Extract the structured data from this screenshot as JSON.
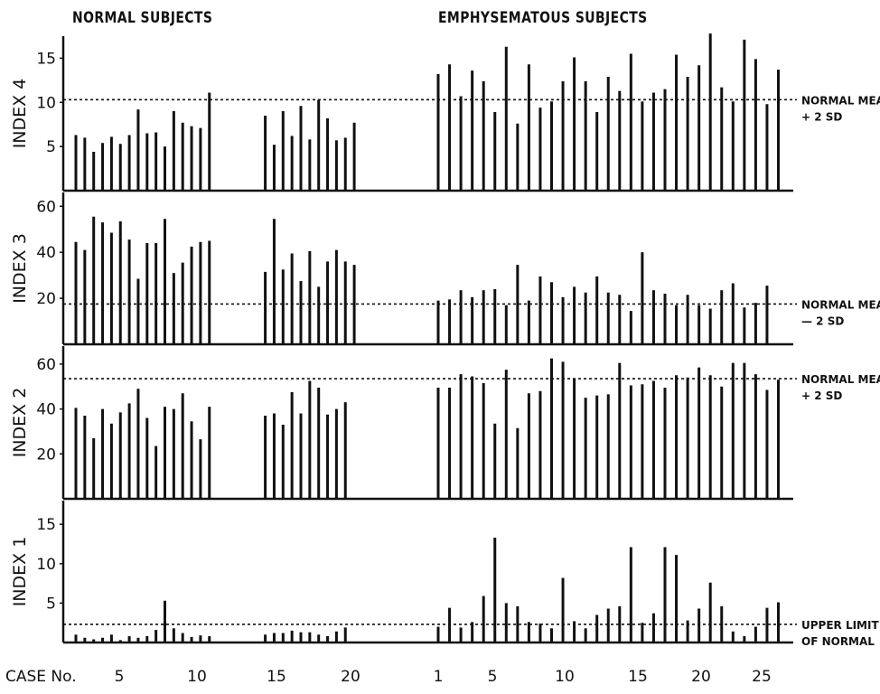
{
  "figure": {
    "headers": {
      "normal": "NORMAL SUBJECTS",
      "emphysema": "EMPHYSEMATOUS SUBJECTS"
    },
    "case_axis_label": "CASE No."
  },
  "chart_data": [
    {
      "type": "bar",
      "ylabel": "INDEX 4",
      "ylim": [
        0,
        17.5
      ],
      "yticks": [
        "5",
        "10",
        "15"
      ],
      "yticks_values": [
        5,
        10,
        15
      ],
      "reference_line": {
        "value": 10.3,
        "label_lines": [
          "NORMAL MEAN",
          "+ 2 SD"
        ]
      },
      "series": [
        {
          "name": "NORMAL SUBJECTS",
          "case_tick_labels": [
            "5",
            "10",
            "15",
            "20"
          ],
          "values": [
            6.3,
            6.0,
            4.4,
            5.4,
            6.1,
            5.3,
            6.3,
            9.2,
            6.5,
            6.6,
            5.0,
            9.0,
            7.7,
            7.3,
            7.1,
            11.1,
            8.5,
            5.2,
            9.0,
            6.2,
            9.6,
            5.8,
            10.3,
            8.2,
            5.7,
            6.0,
            7.7
          ]
        },
        {
          "name": "EMPHYSEMATOUS SUBJECTS",
          "case_tick_labels": [
            "1",
            "5",
            "10",
            "15",
            "20",
            "25"
          ],
          "values": [
            13.2,
            14.3,
            10.7,
            13.6,
            12.4,
            8.9,
            16.3,
            7.6,
            14.3,
            9.4,
            10.1,
            12.4,
            15.1,
            12.4,
            8.9,
            12.9,
            11.3,
            15.5,
            10.1,
            11.1,
            11.5,
            15.4,
            12.9,
            14.2,
            17.8,
            11.7,
            10.1,
            17.1,
            14.9,
            9.8,
            13.7
          ]
        }
      ]
    },
    {
      "type": "bar",
      "ylabel": "INDEX 3",
      "ylim": [
        0,
        66
      ],
      "yticks": [
        "20",
        "40",
        "60"
      ],
      "yticks_values": [
        20,
        40,
        60
      ],
      "reference_line": {
        "value": 17.5,
        "label_lines": [
          "NORMAL MEAN",
          "— 2 SD"
        ]
      },
      "series": [
        {
          "name": "NORMAL SUBJECTS",
          "case_tick_labels": [
            "5",
            "10",
            "15",
            "20"
          ],
          "values": [
            44.5,
            41.0,
            55.5,
            53.0,
            48.5,
            53.5,
            45.5,
            28.5,
            44.0,
            44.0,
            54.5,
            31.0,
            35.5,
            42.5,
            44.5,
            45.0,
            31.5,
            54.5,
            32.5,
            39.5,
            27.5,
            40.5,
            25.0,
            36.0,
            41.0,
            36.0,
            34.5
          ]
        },
        {
          "name": "EMPHYSEMATOUS SUBJECTS",
          "case_tick_labels": [
            "1",
            "5",
            "10",
            "15",
            "20",
            "25"
          ],
          "values": [
            19.0,
            19.5,
            23.5,
            20.5,
            23.5,
            24.0,
            17.0,
            34.5,
            19.0,
            29.5,
            27.0,
            20.5,
            25.0,
            22.5,
            29.5,
            22.5,
            21.5,
            14.5,
            40.0,
            23.5,
            22.0,
            17.0,
            21.5,
            17.0,
            15.5,
            23.5,
            26.5,
            16.0,
            18.0,
            25.5
          ]
        }
      ]
    },
    {
      "type": "bar",
      "ylabel": "INDEX 2",
      "ylim": [
        0,
        68
      ],
      "yticks": [
        "20",
        "40",
        "60"
      ],
      "yticks_values": [
        20,
        40,
        60
      ],
      "reference_line": {
        "value": 53.5,
        "label_lines": [
          "NORMAL MEAN",
          "+ 2 SD"
        ]
      },
      "series": [
        {
          "name": "NORMAL SUBJECTS",
          "case_tick_labels": [
            "5",
            "10",
            "15",
            "20"
          ],
          "values": [
            40.5,
            37.0,
            27.0,
            40.0,
            33.5,
            38.5,
            42.5,
            49.0,
            36.0,
            23.5,
            41.0,
            40.0,
            47.0,
            34.5,
            26.5,
            41.0,
            37.0,
            38.0,
            33.0,
            47.5,
            38.0,
            52.5,
            49.5,
            37.5,
            40.0,
            43.0
          ]
        },
        {
          "name": "EMPHYSEMATOUS SUBJECTS",
          "case_tick_labels": [
            "1",
            "5",
            "10",
            "15",
            "20",
            "25"
          ],
          "values": [
            49.5,
            49.5,
            55.5,
            54.5,
            51.5,
            33.5,
            57.5,
            31.5,
            47.0,
            48.0,
            62.5,
            61.0,
            53.5,
            45.0,
            46.0,
            46.5,
            60.5,
            50.5,
            51.0,
            52.5,
            49.5,
            55.0,
            54.0,
            58.5,
            55.0,
            50.0,
            60.5,
            60.5,
            55.5,
            48.5,
            53.0
          ]
        }
      ]
    },
    {
      "type": "bar",
      "ylabel": "INDEX 1",
      "ylim": [
        0,
        18
      ],
      "yticks": [
        "5",
        "10",
        "15"
      ],
      "yticks_values": [
        5,
        10,
        15
      ],
      "reference_line": {
        "value": 2.3,
        "label_lines": [
          "UPPER LIMIT",
          "OF NORMAL"
        ]
      },
      "series": [
        {
          "name": "NORMAL SUBJECTS",
          "case_tick_labels": [
            "5",
            "10",
            "15",
            "20"
          ],
          "values": [
            1.0,
            0.6,
            0.4,
            0.6,
            1.0,
            0.3,
            0.8,
            0.6,
            0.8,
            1.6,
            5.3,
            1.8,
            1.2,
            0.7,
            0.9,
            0.8,
            1.0,
            1.2,
            1.2,
            1.5,
            1.3,
            1.3,
            1.0,
            0.8,
            1.4,
            1.9
          ]
        },
        {
          "name": "EMPHYSEMATOUS SUBJECTS",
          "case_tick_labels": [
            "1",
            "5",
            "10",
            "15",
            "20",
            "25"
          ],
          "values": [
            2.0,
            4.4,
            1.9,
            2.6,
            5.9,
            13.3,
            5.0,
            4.6,
            2.6,
            2.4,
            1.8,
            8.2,
            2.7,
            1.8,
            3.5,
            4.3,
            4.6,
            12.1,
            2.5,
            3.7,
            12.1,
            11.1,
            2.8,
            4.3,
            7.6,
            4.6,
            1.4,
            0.8,
            2.0,
            4.4,
            5.1
          ]
        }
      ]
    }
  ]
}
